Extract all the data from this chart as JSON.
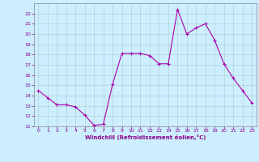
{
  "x": [
    0,
    1,
    2,
    3,
    4,
    5,
    6,
    7,
    8,
    9,
    10,
    11,
    12,
    13,
    14,
    15,
    16,
    17,
    18,
    19,
    20,
    21,
    22,
    23
  ],
  "y": [
    14.5,
    13.8,
    13.1,
    13.1,
    12.9,
    12.1,
    11.1,
    11.2,
    15.1,
    18.1,
    18.1,
    18.1,
    17.9,
    17.1,
    17.1,
    22.4,
    20.0,
    20.6,
    21.0,
    19.4,
    17.1,
    15.7,
    14.5,
    13.3
  ],
  "line_color": "#aa00aa",
  "marker": "+",
  "marker_color": "#aa00aa",
  "bg_color": "#cceeff",
  "grid_color": "#aacccc",
  "xlabel": "Windchill (Refroidissement éolien,°C)",
  "xlabel_color": "#880088",
  "tick_color": "#880088",
  "ylim": [
    11,
    23
  ],
  "xlim": [
    -0.5,
    23.5
  ],
  "yticks": [
    11,
    12,
    13,
    14,
    15,
    16,
    17,
    18,
    19,
    20,
    21,
    22
  ],
  "xticks": [
    0,
    1,
    2,
    3,
    4,
    5,
    6,
    7,
    8,
    9,
    10,
    11,
    12,
    13,
    14,
    15,
    16,
    17,
    18,
    19,
    20,
    21,
    22,
    23
  ]
}
